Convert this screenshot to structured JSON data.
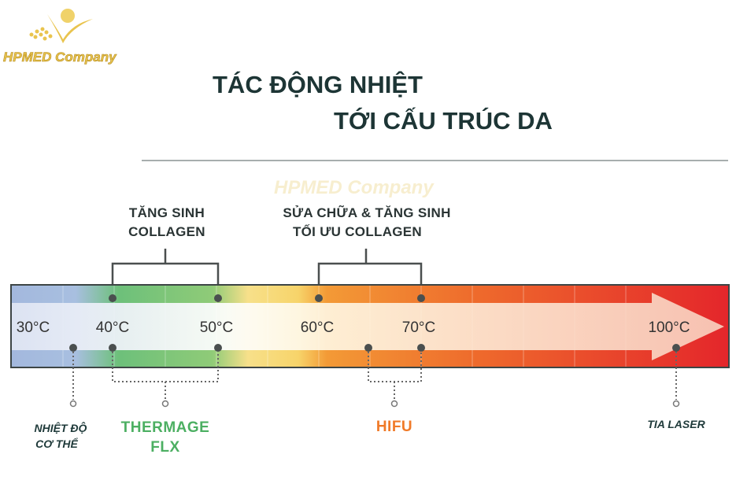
{
  "logo": {
    "text": "HPMED Company",
    "color": "#e8c450"
  },
  "watermark": {
    "text": "HPMED Company"
  },
  "title": {
    "line1": "TÁC ĐỘNG NHIỆT",
    "line2": "TỚI CẤU TRÚC DA",
    "color": "#1d3535"
  },
  "groups": [
    {
      "line1": "TĂNG SINH",
      "line2": "COLLAGEN",
      "range": [
        "40°C",
        "50°C"
      ]
    },
    {
      "line1": "SỬA CHỮA & TĂNG SINH",
      "line2": "TỐI ƯU COLLAGEN",
      "range": [
        "60°C",
        "70°C"
      ]
    }
  ],
  "scale": {
    "ticks": [
      "30°C",
      "40°C",
      "50°C",
      "60°C",
      "70°C",
      "100°C"
    ],
    "gradient_colors": [
      "#a3b8dd",
      "#6dc07a",
      "#f7d46a",
      "#f08a2c",
      "#e4262b"
    ]
  },
  "technologies": [
    {
      "line1": "NHIỆT ĐỘ",
      "line2": "CƠ THỂ",
      "color": "#1f3a3a"
    },
    {
      "line1": "THERMAGE",
      "line2": "FLX",
      "color": "#4caf62"
    },
    {
      "line1": "HIFU",
      "color": "#f07a28"
    },
    {
      "line1": "TIA LASER",
      "color": "#1f3a3a"
    }
  ]
}
